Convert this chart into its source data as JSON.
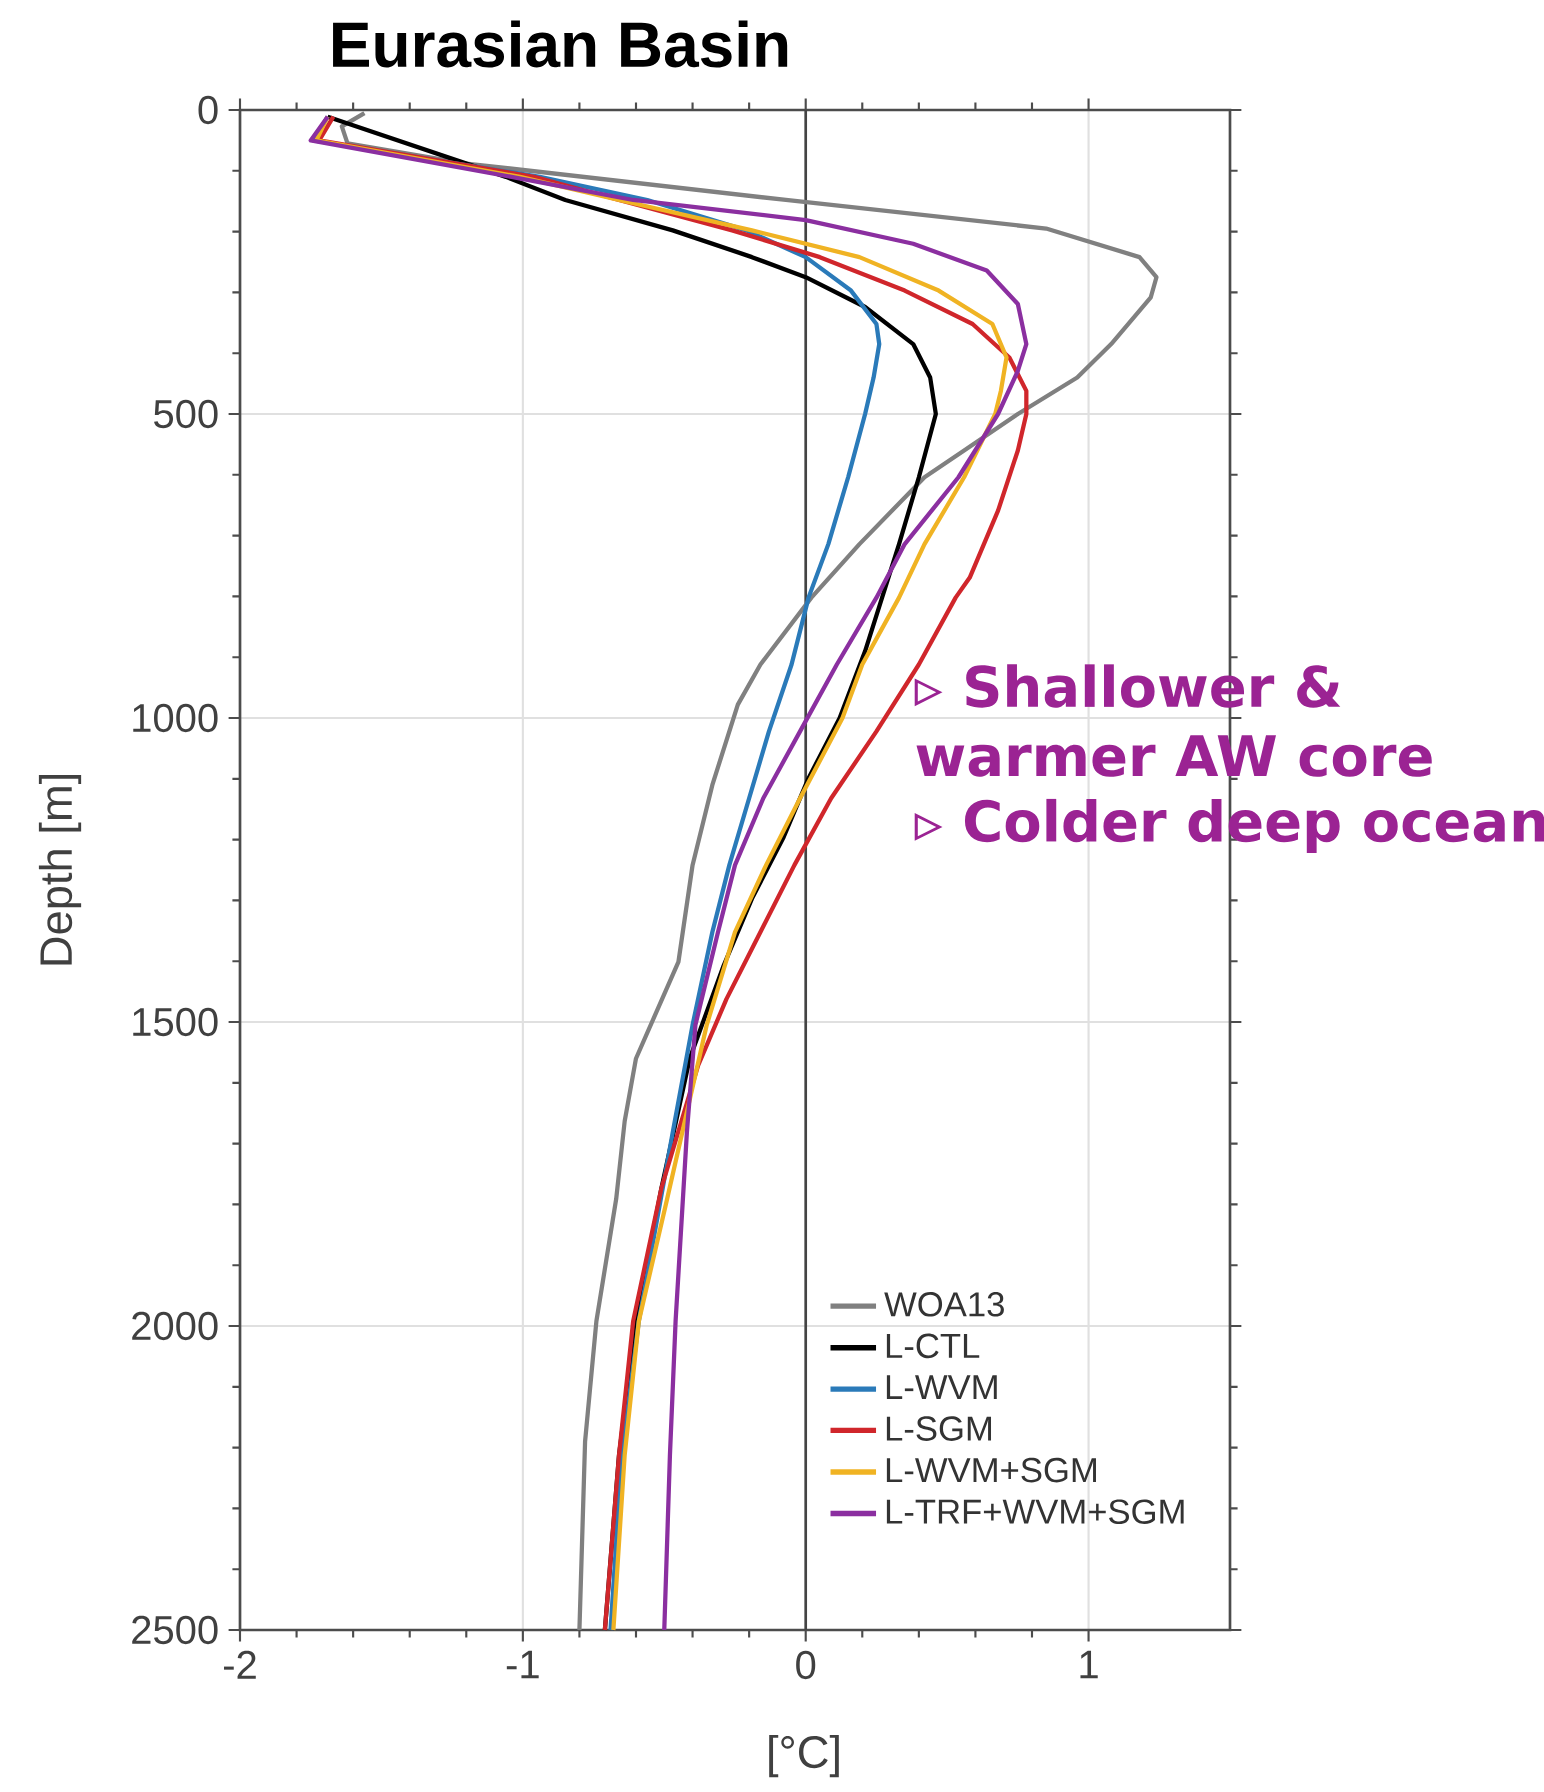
{
  "chart_data": {
    "type": "line",
    "title": "Eurasian Basin",
    "xlabel": "[°C]",
    "ylabel": "Depth [m]",
    "xlim": [
      -2,
      1.5
    ],
    "xticks": [
      -2,
      -1,
      0,
      1
    ],
    "ylim": [
      2500,
      0
    ],
    "yticks": [
      0,
      500,
      1000,
      1500,
      2000,
      2500
    ],
    "grid": true,
    "legend": "bottom right",
    "ref_lines": [
      {
        "axis": "x",
        "value": 0,
        "color": "#444444"
      }
    ],
    "annotations": [
      "▹ Shallower &",
      "warmer AW  core",
      "▹ Colder deep ocean"
    ],
    "series": [
      {
        "name": "WOA13",
        "color": "#808080",
        "x": [
          -1.56,
          -1.64,
          -1.62,
          -1.2,
          -0.07,
          0.85,
          1.18,
          1.24,
          1.22,
          1.08,
          0.96,
          0.75,
          0.56,
          0.42,
          0.19,
          0.02,
          -0.16,
          -0.24,
          -0.33,
          -0.4,
          -0.45,
          -0.6,
          -0.64,
          -0.67,
          -0.74,
          -0.78,
          -0.8
        ],
        "values": [
          5,
          27,
          55,
          88,
          148,
          195,
          242,
          275,
          308,
          385,
          440,
          500,
          560,
          604,
          714,
          802,
          912,
          978,
          1110,
          1242,
          1401,
          1560,
          1663,
          1791,
          1992,
          2190,
          2500
        ]
      },
      {
        "name": "L-CTL",
        "color": "#000000",
        "x": [
          -1.69,
          -1.06,
          -0.85,
          -0.47,
          -0.19,
          0,
          0.21,
          0.38,
          0.44,
          0.46,
          0.4,
          0.33,
          0.27,
          0.21,
          0.12,
          0.01,
          -0.08,
          -0.19,
          -0.29,
          -0.41,
          -0.51,
          -0.6,
          -0.66,
          -0.71
        ],
        "values": [
          11,
          110,
          148,
          198,
          242,
          275,
          324,
          385,
          440,
          500,
          604,
          714,
          802,
          890,
          1000,
          1099,
          1198,
          1297,
          1407,
          1560,
          1773,
          1992,
          2212,
          2500
        ]
      },
      {
        "name": "L-WVM",
        "color": "#2a7ab9",
        "x": [
          -1.69,
          -1.74,
          -0.94,
          -0.56,
          -0.21,
          0,
          0.16,
          0.25,
          0.26,
          0.24,
          0.21,
          0.15,
          0.08,
          0.01,
          -0.05,
          -0.13,
          -0.2,
          -0.27,
          -0.33,
          -0.4,
          -0.47,
          -0.59,
          -0.65,
          -0.69
        ],
        "values": [
          11,
          50,
          110,
          148,
          198,
          242,
          297,
          352,
          385,
          440,
          500,
          604,
          714,
          802,
          912,
          1022,
          1132,
          1242,
          1352,
          1505,
          1681,
          1992,
          2212,
          2500
        ]
      },
      {
        "name": "L-SGM",
        "color": "#d0262b",
        "x": [
          -1.67,
          -1.72,
          -0.96,
          -0.66,
          -0.26,
          0.05,
          0.35,
          0.59,
          0.72,
          0.78,
          0.78,
          0.75,
          0.68,
          0.58,
          0.53,
          0.4,
          0.25,
          0.09,
          -0.04,
          -0.16,
          -0.28,
          -0.38,
          -0.51,
          -0.61,
          -0.66,
          -0.71
        ],
        "values": [
          11,
          50,
          110,
          148,
          198,
          242,
          297,
          352,
          407,
          462,
          500,
          560,
          659,
          769,
          802,
          912,
          1022,
          1132,
          1242,
          1352,
          1462,
          1571,
          1773,
          1992,
          2212,
          2500
        ]
      },
      {
        "name": "L-WVM+SGM",
        "color": "#f0b323",
        "x": [
          -1.69,
          -1.73,
          -1.01,
          -0.66,
          -0.19,
          0.19,
          0.47,
          0.66,
          0.71,
          0.69,
          0.67,
          0.56,
          0.42,
          0.33,
          0.2,
          0.13,
          -0.02,
          -0.14,
          -0.25,
          -0.35,
          -0.49,
          -0.59,
          -0.64,
          -0.68
        ],
        "values": [
          11,
          50,
          110,
          148,
          198,
          242,
          297,
          352,
          407,
          462,
          500,
          604,
          714,
          802,
          912,
          1000,
          1132,
          1242,
          1352,
          1505,
          1791,
          1992,
          2212,
          2500
        ]
      },
      {
        "name": "L-TRF+WVM+SGM",
        "color": "#8b2fa0",
        "x": [
          -1.69,
          -1.75,
          -1.04,
          -0.61,
          0,
          0.38,
          0.64,
          0.75,
          0.78,
          0.75,
          0.68,
          0.54,
          0.35,
          0.25,
          0.11,
          -0.02,
          -0.15,
          -0.25,
          -0.31,
          -0.39,
          -0.42,
          -0.46,
          -0.48,
          -0.5
        ],
        "values": [
          11,
          50,
          110,
          148,
          181,
          220,
          264,
          319,
          385,
          429,
          500,
          604,
          714,
          802,
          912,
          1022,
          1132,
          1242,
          1352,
          1505,
          1681,
          1992,
          2212,
          2500
        ]
      }
    ]
  }
}
